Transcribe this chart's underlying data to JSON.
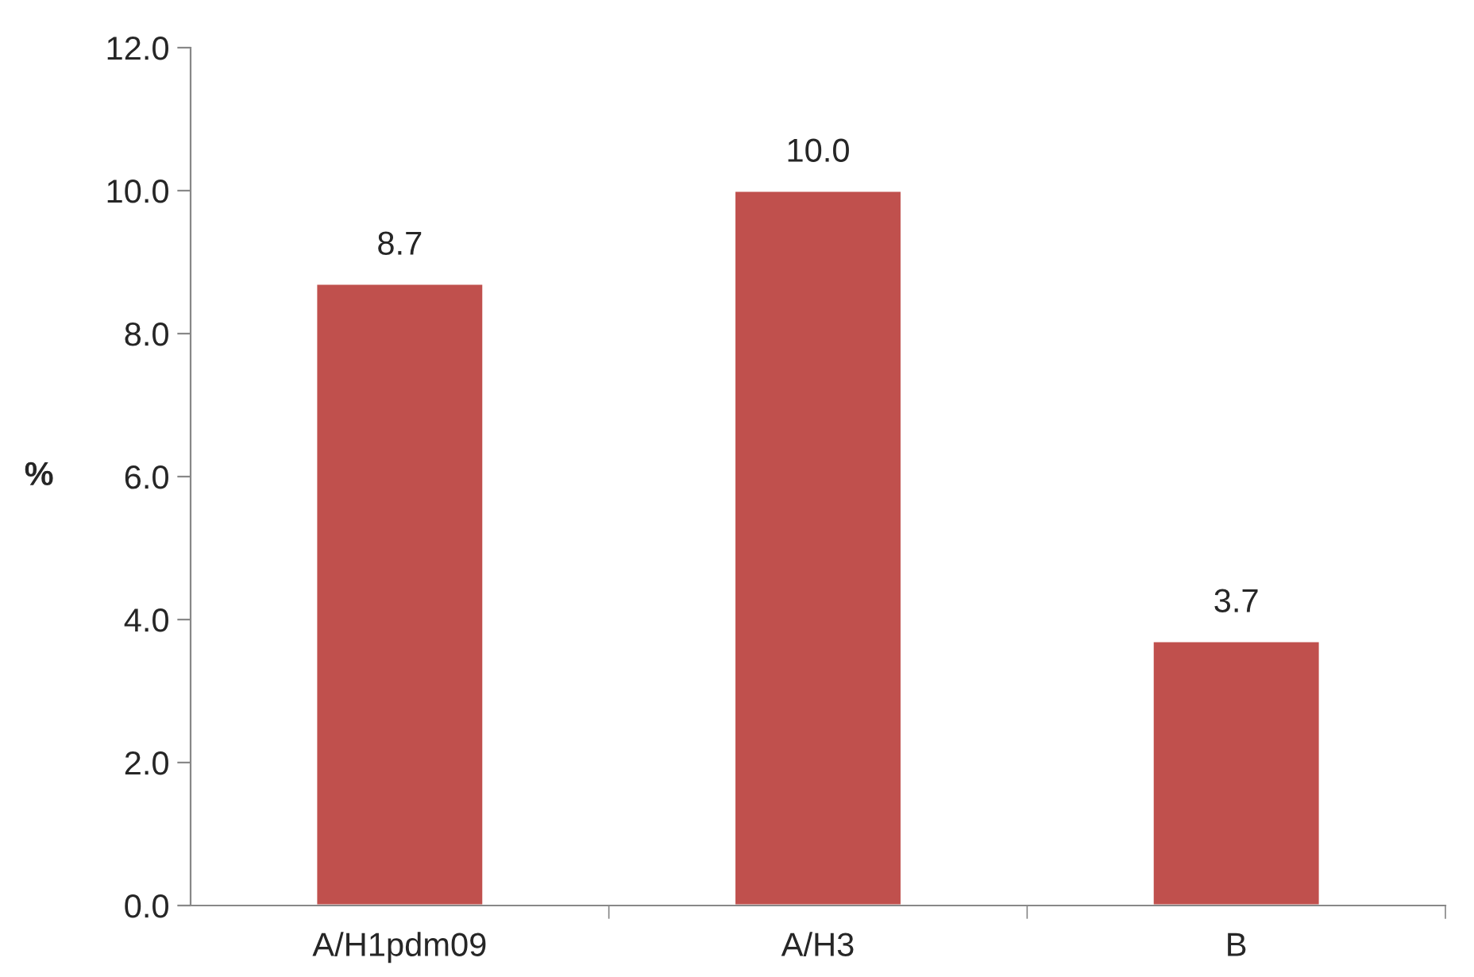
{
  "chart_data": {
    "type": "bar",
    "categories": [
      "A/H1pdm09",
      "A/H3",
      "B"
    ],
    "values": [
      8.7,
      10.0,
      3.7
    ],
    "value_labels": [
      "8.7",
      "10.0",
      "3.7"
    ],
    "color": "#c0504d",
    "ylabel": "%",
    "ylim": [
      0,
      12
    ],
    "yticks": [
      {
        "value": 0,
        "label": "0.0"
      },
      {
        "value": 2,
        "label": "2.0"
      },
      {
        "value": 4,
        "label": "4.0"
      },
      {
        "value": 6,
        "label": "6.0"
      },
      {
        "value": 8,
        "label": "8.0"
      },
      {
        "value": 10,
        "label": "10.0"
      },
      {
        "value": 12,
        "label": "12.0"
      }
    ],
    "grid": false
  }
}
